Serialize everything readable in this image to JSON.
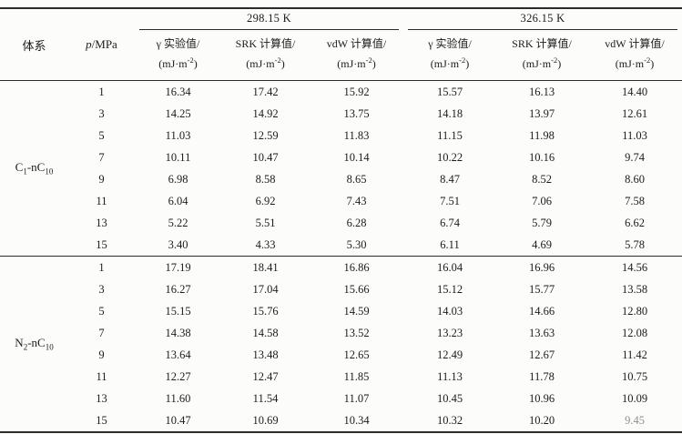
{
  "page": {
    "background": "#fcfcfa",
    "text_color": "#1b1b1b",
    "rule_color": "#2a2a2a"
  },
  "table": {
    "header": {
      "system": "体系",
      "pressure_symbol": "p",
      "pressure_rest": "/MPa",
      "temp_groups": [
        "298.15 K",
        "326.15 K"
      ],
      "value_columns": [
        "γ 实验值/",
        "SRK 计算值/",
        "vdW 计算值/",
        "γ 实验值/",
        "SRK 计算值/",
        "vdW 计算值/"
      ],
      "unit": {
        "pre": "(mJ·m",
        "sup": "-2",
        "post": ")"
      }
    },
    "groups": [
      {
        "system": [
          {
            "t": "C"
          },
          {
            "t": "1",
            "sub": true
          },
          {
            "t": "-nC"
          },
          {
            "t": "10",
            "sub": true
          }
        ],
        "rows": [
          {
            "p": "1",
            "values": [
              "16.34",
              "17.42",
              "15.92",
              "15.57",
              "16.13",
              "14.40"
            ]
          },
          {
            "p": "3",
            "values": [
              "14.25",
              "14.92",
              "13.75",
              "14.18",
              "13.97",
              "12.61"
            ]
          },
          {
            "p": "5",
            "values": [
              "11.03",
              "12.59",
              "11.83",
              "11.15",
              "11.98",
              "11.03"
            ]
          },
          {
            "p": "7",
            "values": [
              "10.11",
              "10.47",
              "10.14",
              "10.22",
              "10.16",
              "9.74"
            ]
          },
          {
            "p": "9",
            "values": [
              "6.98",
              "8.58",
              "8.65",
              "8.47",
              "8.52",
              "8.60"
            ]
          },
          {
            "p": "11",
            "values": [
              "6.04",
              "6.92",
              "7.43",
              "7.51",
              "7.06",
              "7.58"
            ]
          },
          {
            "p": "13",
            "values": [
              "5.22",
              "5.51",
              "6.28",
              "6.74",
              "5.79",
              "6.62"
            ]
          },
          {
            "p": "15",
            "values": [
              "3.40",
              "4.33",
              "5.30",
              "6.11",
              "4.69",
              "5.78"
            ]
          }
        ]
      },
      {
        "system": [
          {
            "t": "N"
          },
          {
            "t": "2",
            "sub": true
          },
          {
            "t": "-nC"
          },
          {
            "t": "10",
            "sub": true
          }
        ],
        "rows": [
          {
            "p": "1",
            "values": [
              "17.19",
              "18.41",
              "16.86",
              "16.04",
              "16.96",
              "14.56"
            ]
          },
          {
            "p": "3",
            "values": [
              "16.27",
              "17.04",
              "15.66",
              "15.12",
              "15.77",
              "13.58"
            ]
          },
          {
            "p": "5",
            "values": [
              "15.15",
              "15.76",
              "14.59",
              "14.03",
              "14.66",
              "12.80"
            ]
          },
          {
            "p": "7",
            "values": [
              "14.38",
              "14.58",
              "13.52",
              "13.23",
              "13.63",
              "12.08"
            ]
          },
          {
            "p": "9",
            "values": [
              "13.64",
              "13.48",
              "12.65",
              "12.49",
              "12.67",
              "11.42"
            ]
          },
          {
            "p": "11",
            "values": [
              "12.27",
              "12.47",
              "11.85",
              "11.13",
              "11.78",
              "10.75"
            ]
          },
          {
            "p": "13",
            "values": [
              "11.60",
              "11.54",
              "11.07",
              "10.45",
              "10.96",
              "10.09"
            ]
          },
          {
            "p": "15",
            "values": [
              "10.47",
              "10.69",
              "10.34",
              "10.32",
              "10.20",
              "9.45"
            ]
          }
        ]
      }
    ]
  }
}
